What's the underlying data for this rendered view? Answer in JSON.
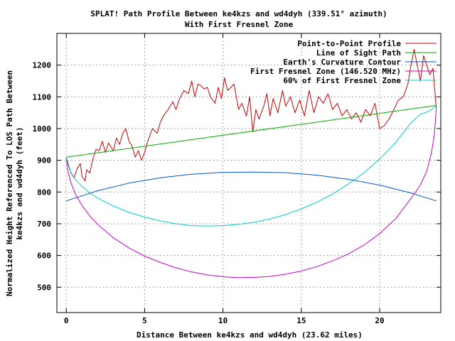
{
  "chart_data": {
    "type": "line",
    "title": "SPLAT! Path Profile Between ke4kzs and wd4dyh (339.51° azimuth)",
    "subtitle": "With First Fresnel Zone",
    "xlabel": "Distance Between ke4kzs and wd4dyh (23.62 miles)",
    "ylabel_line1": "Normalized Height Referenced To LOS Path Between",
    "ylabel_line2": "ke4kzs and wd4dyh (feet)",
    "xlim": [
      -0.6,
      23.9
    ],
    "ylim": [
      420,
      1300
    ],
    "xticks": [
      0,
      5,
      10,
      15,
      20
    ],
    "xtick_labels": [
      "0",
      "5",
      "10",
      "15",
      "20"
    ],
    "yticks": [
      500,
      600,
      700,
      800,
      900,
      1000,
      1100,
      1200
    ],
    "ytick_labels": [
      "500",
      "600",
      "700",
      "800",
      "900",
      "1000",
      "1100",
      "1200"
    ],
    "grid": true,
    "legend_position": "top-right",
    "series": [
      {
        "name": "Point-to-Point Profile",
        "color": "#cc0000",
        "x": [
          0,
          0.3,
          0.5,
          0.7,
          0.9,
          1.0,
          1.2,
          1.3,
          1.5,
          1.7,
          1.9,
          2.1,
          2.3,
          2.5,
          2.7,
          3.0,
          3.2,
          3.4,
          3.6,
          3.8,
          4.0,
          4.2,
          4.4,
          4.6,
          4.8,
          5.0,
          5.2,
          5.5,
          5.8,
          6.0,
          6.2,
          6.5,
          6.8,
          7.0,
          7.2,
          7.5,
          7.8,
          8.0,
          8.2,
          8.4,
          8.6,
          8.8,
          9.0,
          9.2,
          9.5,
          9.7,
          9.9,
          10.1,
          10.3,
          10.5,
          10.7,
          11.0,
          11.2,
          11.5,
          11.7,
          11.9,
          12.1,
          12.3,
          12.6,
          12.8,
          13.0,
          13.2,
          13.5,
          13.8,
          14.0,
          14.3,
          14.6,
          14.9,
          15.2,
          15.5,
          15.8,
          16.1,
          16.4,
          16.7,
          17.0,
          17.3,
          17.6,
          17.9,
          18.2,
          18.5,
          18.8,
          19.1,
          19.4,
          19.7,
          20.0,
          20.3,
          20.6,
          20.9,
          21.2,
          21.5,
          21.8,
          22.0,
          22.2,
          22.4,
          22.6,
          22.8,
          23.0,
          23.2,
          23.4,
          23.6
        ],
        "y": [
          905,
          860,
          845,
          875,
          890,
          850,
          835,
          870,
          860,
          905,
          935,
          930,
          960,
          925,
          955,
          930,
          970,
          950,
          985,
          1000,
          960,
          945,
          910,
          930,
          900,
          925,
          960,
          1000,
          985,
          1020,
          1040,
          1060,
          1085,
          1060,
          1090,
          1120,
          1110,
          1150,
          1100,
          1140,
          1135,
          1125,
          1130,
          1100,
          1080,
          1130,
          1095,
          1160,
          1120,
          1130,
          1140,
          1060,
          1080,
          1040,
          1100,
          990,
          1060,
          1030,
          1070,
          1110,
          1040,
          1095,
          1050,
          1120,
          1070,
          1100,
          1050,
          1090,
          1040,
          1120,
          1050,
          1100,
          1080,
          1110,
          1060,
          1080,
          1040,
          1060,
          1030,
          1050,
          1020,
          1060,
          1040,
          1080,
          1000,
          1010,
          1030,
          1060,
          1090,
          1100,
          1140,
          1200,
          1250,
          1200,
          1150,
          1230,
          1200,
          1170,
          1190,
          1070
        ]
      },
      {
        "name": "Line of Sight Path",
        "color": "#00aa00",
        "x": [
          0,
          23.62
        ],
        "y": [
          910,
          1073
        ]
      },
      {
        "name": "Earth's Curvature Contour",
        "color": "#0055cc",
        "x": [
          0,
          2,
          4,
          6,
          8,
          10,
          11.81,
          14,
          16,
          18,
          20,
          22,
          23.62
        ],
        "y": [
          772,
          804,
          828,
          845,
          856,
          862,
          863,
          861,
          853,
          840,
          822,
          797,
          772
        ]
      },
      {
        "name": "First Fresnel Zone (146.520 MHz)",
        "color": "#cc00cc",
        "x": [
          0,
          0.1,
          0.3,
          0.6,
          1,
          1.5,
          2,
          3,
          4,
          5,
          6,
          7,
          8,
          9,
          10,
          11,
          12,
          13,
          14,
          15,
          16,
          17,
          18,
          19,
          20,
          21,
          22,
          22.6,
          23.0,
          23.3,
          23.5,
          23.62
        ],
        "y": [
          910,
          866,
          829,
          791,
          758,
          725,
          698,
          656,
          624,
          598,
          578,
          561,
          548,
          539,
          533,
          530,
          531,
          534,
          541,
          551,
          565,
          583,
          605,
          633,
          669,
          715,
          780,
          822,
          866,
          923,
          985,
          1073
        ]
      },
      {
        "name": "60% of First Fresnel Zone",
        "color": "#00cccc",
        "x": [
          0,
          0.3,
          0.6,
          1,
          1.5,
          2,
          3,
          4,
          5,
          6,
          7,
          8,
          9,
          10,
          11,
          12,
          13,
          14,
          15,
          16,
          17,
          18,
          19,
          20,
          21,
          22,
          22.6,
          23.0,
          23.3,
          23.62
        ],
        "y": [
          910,
          862,
          838,
          818,
          797,
          781,
          756,
          736,
          721,
          709,
          700,
          694,
          693,
          694,
          698,
          705,
          715,
          729,
          747,
          768,
          794,
          825,
          861,
          904,
          955,
          1018,
          1045,
          1052,
          1060,
          1073
        ]
      }
    ]
  }
}
